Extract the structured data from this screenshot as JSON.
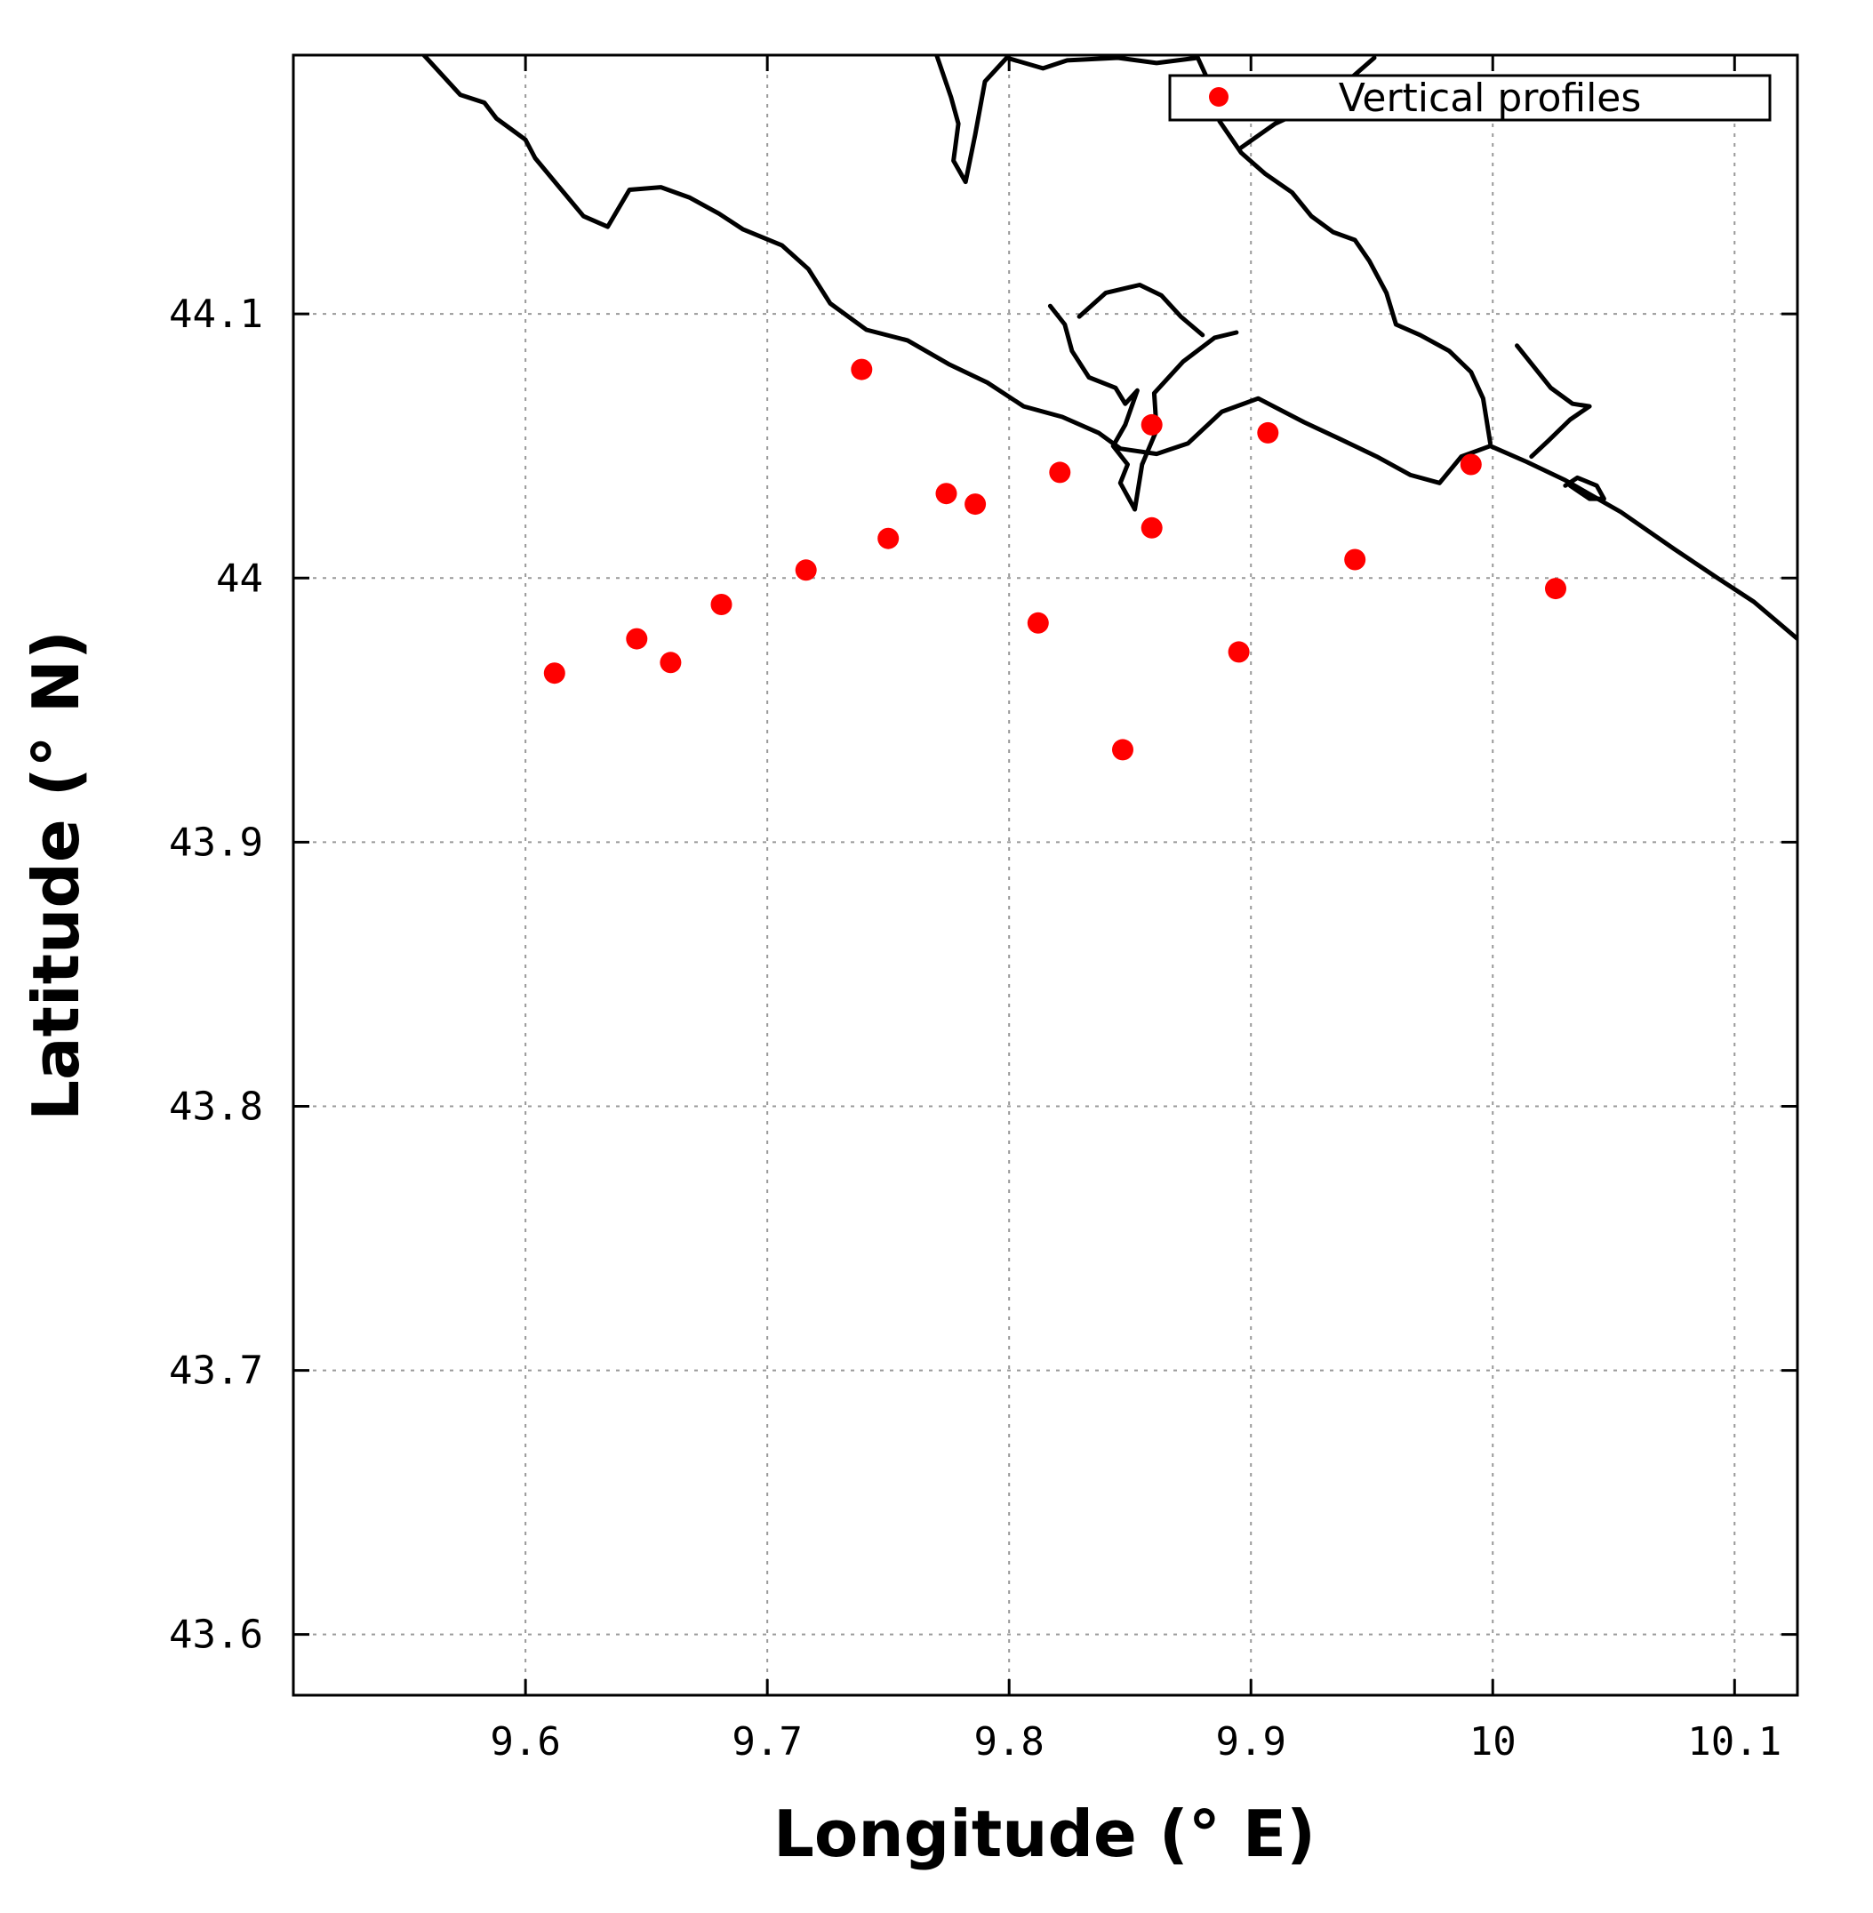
{
  "chart_data": {
    "type": "scatter",
    "title": "",
    "xlabel": "Longitude (° E)",
    "ylabel": "Latitude (° N)",
    "xlim": [
      9.504,
      10.126
    ],
    "ylim": [
      43.577,
      44.198
    ],
    "grid": true,
    "legend_position": "top-right",
    "x_ticks": [
      9.6,
      9.7,
      9.8,
      9.9,
      10,
      10.1
    ],
    "x_tick_labels": [
      "9.6",
      "9.7",
      "9.8",
      "9.9",
      "10",
      "10.1"
    ],
    "y_ticks": [
      43.6,
      43.7,
      43.8,
      43.9,
      44,
      44.1
    ],
    "y_tick_labels": [
      "43.6",
      "43.7",
      "43.8",
      "43.9",
      "44",
      "44.1"
    ],
    "series": [
      {
        "name": "Vertical profiles",
        "color": "#ff0000",
        "marker": "circle",
        "x": [
          9.612,
          9.646,
          9.66,
          9.681,
          9.716,
          9.739,
          9.75,
          9.774,
          9.786,
          9.812,
          9.821,
          9.847,
          9.859,
          9.859,
          9.895,
          9.907,
          9.943,
          9.991,
          10.026
        ],
        "y": [
          43.964,
          43.977,
          43.968,
          43.99,
          44.003,
          44.079,
          44.015,
          44.032,
          44.028,
          43.983,
          44.04,
          43.935,
          44.058,
          44.019,
          43.972,
          44.055,
          44.007,
          44.043,
          43.996
        ]
      }
    ],
    "coastline": {
      "name": "coastline",
      "color": "#000000",
      "segments": [
        [
          [
            9.558,
            44.198
          ],
          [
            9.566,
            44.19
          ],
          [
            9.573,
            44.183
          ],
          [
            9.583,
            44.18
          ],
          [
            9.588,
            44.174
          ],
          [
            9.594,
            44.17
          ],
          [
            9.6,
            44.166
          ],
          [
            9.604,
            44.159
          ],
          [
            9.614,
            44.148
          ],
          [
            9.624,
            44.137
          ],
          [
            9.634,
            44.133
          ],
          [
            9.643,
            44.147
          ],
          [
            9.656,
            44.148
          ],
          [
            9.668,
            44.144
          ],
          [
            9.68,
            44.138
          ],
          [
            9.69,
            44.132
          ],
          [
            9.706,
            44.126
          ],
          [
            9.717,
            44.117
          ],
          [
            9.726,
            44.104
          ],
          [
            9.741,
            44.094
          ],
          [
            9.758,
            44.09
          ],
          [
            9.775,
            44.081
          ],
          [
            9.791,
            44.074
          ],
          [
            9.806,
            44.065
          ],
          [
            9.822,
            44.061
          ],
          [
            9.837,
            44.055
          ],
          [
            9.846,
            44.049
          ],
          [
            9.861,
            44.047
          ],
          [
            9.874,
            44.051
          ],
          [
            9.888,
            44.063
          ],
          [
            9.903,
            44.068
          ],
          [
            9.922,
            44.059
          ],
          [
            9.936,
            44.053
          ],
          [
            9.952,
            44.046
          ],
          [
            9.966,
            44.039
          ],
          [
            9.978,
            44.036
          ],
          [
            9.987,
            44.046
          ],
          [
            9.999,
            44.05
          ],
          [
            10.014,
            44.044
          ],
          [
            10.03,
            44.037
          ],
          [
            10.053,
            44.025
          ],
          [
            10.075,
            44.011
          ],
          [
            10.093,
            44.0
          ],
          [
            10.108,
            43.991
          ],
          [
            10.126,
            43.977
          ]
        ],
        [
          [
            9.77,
            44.198
          ],
          [
            9.776,
            44.182
          ],
          [
            9.779,
            44.172
          ],
          [
            9.777,
            44.158
          ],
          [
            9.782,
            44.15
          ],
          [
            9.786,
            44.168
          ],
          [
            9.79,
            44.188
          ],
          [
            9.799,
            44.197
          ],
          [
            9.814,
            44.193
          ],
          [
            9.824,
            44.196
          ],
          [
            9.845,
            44.197
          ],
          [
            9.861,
            44.195
          ],
          [
            9.878,
            44.197
          ]
        ],
        [
          [
            9.878,
            44.197
          ],
          [
            9.884,
            44.185
          ],
          [
            9.887,
            44.173
          ],
          [
            9.896,
            44.161
          ],
          [
            9.906,
            44.153
          ],
          [
            9.917,
            44.146
          ],
          [
            9.925,
            44.137
          ],
          [
            9.934,
            44.131
          ],
          [
            9.943,
            44.128
          ],
          [
            9.949,
            44.12
          ],
          [
            9.956,
            44.108
          ],
          [
            9.96,
            44.096
          ],
          [
            9.97,
            44.092
          ],
          [
            9.982,
            44.086
          ],
          [
            9.991,
            44.078
          ],
          [
            9.996,
            44.068
          ],
          [
            9.999,
            44.051
          ]
        ],
        [
          [
            9.896,
            44.163
          ],
          [
            9.91,
            44.172
          ],
          [
            9.924,
            44.178
          ],
          [
            9.936,
            44.185
          ],
          [
            9.951,
            44.197
          ]
        ],
        [
          [
            9.817,
            44.103
          ],
          [
            9.823,
            44.096
          ],
          [
            9.826,
            44.086
          ],
          [
            9.833,
            44.076
          ],
          [
            9.844,
            44.072
          ],
          [
            9.848,
            44.066
          ],
          [
            9.853,
            44.071
          ],
          [
            9.848,
            44.058
          ],
          [
            9.843,
            44.05
          ],
          [
            9.849,
            44.043
          ],
          [
            9.846,
            44.036
          ],
          [
            9.852,
            44.026
          ],
          [
            9.855,
            44.043
          ],
          [
            9.861,
            44.056
          ],
          [
            9.86,
            44.07
          ],
          [
            9.872,
            44.082
          ],
          [
            9.885,
            44.091
          ],
          [
            9.894,
            44.093
          ]
        ],
        [
          [
            9.829,
            44.099
          ],
          [
            9.84,
            44.108
          ],
          [
            9.854,
            44.111
          ],
          [
            9.863,
            44.107
          ],
          [
            9.871,
            44.099
          ],
          [
            9.88,
            44.092
          ]
        ],
        [
          [
            10.01,
            44.088
          ],
          [
            10.017,
            44.08
          ],
          [
            10.024,
            44.072
          ],
          [
            10.033,
            44.066
          ],
          [
            10.04,
            44.065
          ],
          [
            10.032,
            44.06
          ],
          [
            10.023,
            44.052
          ],
          [
            10.016,
            44.046
          ]
        ],
        [
          [
            10.032,
            44.035
          ],
          [
            10.04,
            44.03
          ],
          [
            10.046,
            44.03
          ],
          [
            10.043,
            44.035
          ],
          [
            10.035,
            44.038
          ],
          [
            10.03,
            44.035
          ]
        ]
      ]
    }
  }
}
